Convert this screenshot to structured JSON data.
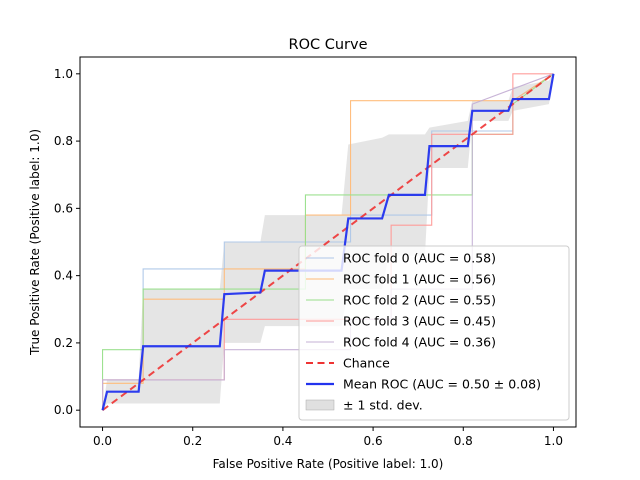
{
  "chart_data": {
    "type": "line",
    "title": "ROC Curve",
    "xlabel": "False Positive Rate (Positive label: 1.0)",
    "ylabel": "True Positive Rate (Positive label: 1.0)",
    "xlim": [
      -0.05,
      1.05
    ],
    "ylim": [
      -0.05,
      1.05
    ],
    "xticks": [
      "0.0",
      "0.2",
      "0.4",
      "0.6",
      "0.8",
      "1.0"
    ],
    "yticks": [
      "0.0",
      "0.2",
      "0.4",
      "0.6",
      "0.8",
      "1.0"
    ],
    "legend_position": "lower-right",
    "colors": {
      "fold0": "#aec7e8",
      "fold1": "#ffbb78",
      "fold2": "#98df8a",
      "fold3": "#ff9896",
      "fold4": "#c5b0d5",
      "chance": "#ee3333",
      "mean": "#2233ee",
      "band": "#bbbbbb"
    },
    "series": [
      {
        "name": "ROC fold 0 (AUC = 0.58)",
        "key": "fold0",
        "x": [
          0,
          0,
          0.09,
          0.09,
          0.27,
          0.27,
          0.36,
          0.36,
          0.55,
          0.55,
          0.73,
          0.73,
          0.82,
          0.82,
          0.91,
          0.91,
          1.0
        ],
        "y": [
          0,
          0.09,
          0.09,
          0.42,
          0.42,
          0.5,
          0.5,
          0.5,
          0.5,
          0.58,
          0.58,
          0.83,
          0.83,
          0.83,
          0.83,
          0.92,
          1.0
        ]
      },
      {
        "name": "ROC fold 1 (AUC = 0.56)",
        "key": "fold1",
        "x": [
          0,
          0,
          0.09,
          0.09,
          0.27,
          0.27,
          0.45,
          0.45,
          0.55,
          0.55,
          0.82,
          0.82,
          0.91,
          0.91,
          1.0
        ],
        "y": [
          0,
          0.08,
          0.08,
          0.33,
          0.33,
          0.42,
          0.42,
          0.58,
          0.58,
          0.92,
          0.92,
          0.92,
          0.92,
          0.92,
          1.0
        ]
      },
      {
        "name": "ROC fold 2 (AUC = 0.55)",
        "key": "fold2",
        "x": [
          0,
          0,
          0.09,
          0.09,
          0.45,
          0.45,
          0.73,
          0.73,
          0.82,
          0.82,
          0.91,
          0.91,
          1.0
        ],
        "y": [
          0,
          0.18,
          0.18,
          0.36,
          0.36,
          0.64,
          0.64,
          0.64,
          0.64,
          0.82,
          0.82,
          0.91,
          1.0
        ]
      },
      {
        "name": "ROC fold 3 (AUC = 0.45)",
        "key": "fold3",
        "x": [
          0,
          0,
          0.27,
          0.27,
          0.36,
          0.36,
          0.64,
          0.64,
          0.73,
          0.73,
          0.91,
          0.91,
          1.0
        ],
        "y": [
          0,
          0.09,
          0.09,
          0.27,
          0.27,
          0.27,
          0.27,
          0.55,
          0.55,
          0.82,
          0.82,
          1.0,
          1.0
        ]
      },
      {
        "name": "ROC fold 4 (AUC = 0.36)",
        "key": "fold4",
        "x": [
          0,
          0,
          0.09,
          0.09,
          0.27,
          0.27,
          0.55,
          0.55,
          0.64,
          0.64,
          0.82,
          0.82,
          1.0
        ],
        "y": [
          0,
          0.09,
          0.09,
          0.09,
          0.09,
          0.18,
          0.18,
          0.27,
          0.27,
          0.36,
          0.36,
          0.91,
          1.0
        ]
      },
      {
        "name": "Chance",
        "key": "chance",
        "x": [
          0,
          1
        ],
        "y": [
          0,
          1
        ]
      },
      {
        "name": "Mean ROC (AUC = 0.50 ± 0.08)",
        "key": "mean",
        "x": [
          0,
          0.01,
          0.01,
          0.08,
          0.09,
          0.09,
          0.26,
          0.27,
          0.27,
          0.35,
          0.36,
          0.36,
          0.53,
          0.545,
          0.545,
          0.62,
          0.635,
          0.635,
          0.715,
          0.725,
          0.725,
          0.81,
          0.82,
          0.82,
          0.9,
          0.91,
          0.91,
          0.99,
          1.0
        ],
        "y": [
          0,
          0.055,
          0.055,
          0.055,
          0.19,
          0.19,
          0.19,
          0.345,
          0.345,
          0.35,
          0.415,
          0.415,
          0.415,
          0.57,
          0.57,
          0.57,
          0.64,
          0.64,
          0.64,
          0.785,
          0.785,
          0.785,
          0.89,
          0.89,
          0.89,
          0.925,
          0.925,
          0.925,
          1.0
        ]
      },
      {
        "name": "± 1 std. dev.",
        "key": "band",
        "x": [
          0,
          0.01,
          0.01,
          0.08,
          0.09,
          0.09,
          0.26,
          0.27,
          0.27,
          0.35,
          0.36,
          0.36,
          0.53,
          0.545,
          0.545,
          0.62,
          0.635,
          0.635,
          0.715,
          0.725,
          0.725,
          0.81,
          0.82,
          0.82,
          0.9,
          0.91,
          0.91,
          0.99,
          1.0
        ],
        "upper": [
          0,
          0.09,
          0.09,
          0.09,
          0.36,
          0.36,
          0.36,
          0.5,
          0.5,
          0.5,
          0.58,
          0.58,
          0.58,
          0.79,
          0.79,
          0.81,
          0.82,
          0.82,
          0.82,
          0.84,
          0.84,
          0.86,
          0.92,
          0.92,
          0.92,
          0.96,
          0.96,
          0.98,
          1.0
        ],
        "lower": [
          0,
          0.02,
          0.02,
          0.02,
          0.02,
          0.02,
          0.02,
          0.2,
          0.2,
          0.2,
          0.25,
          0.25,
          0.25,
          0.36,
          0.36,
          0.36,
          0.46,
          0.46,
          0.46,
          0.72,
          0.72,
          0.72,
          0.86,
          0.86,
          0.86,
          0.89,
          0.89,
          0.91,
          1.0
        ]
      }
    ]
  }
}
